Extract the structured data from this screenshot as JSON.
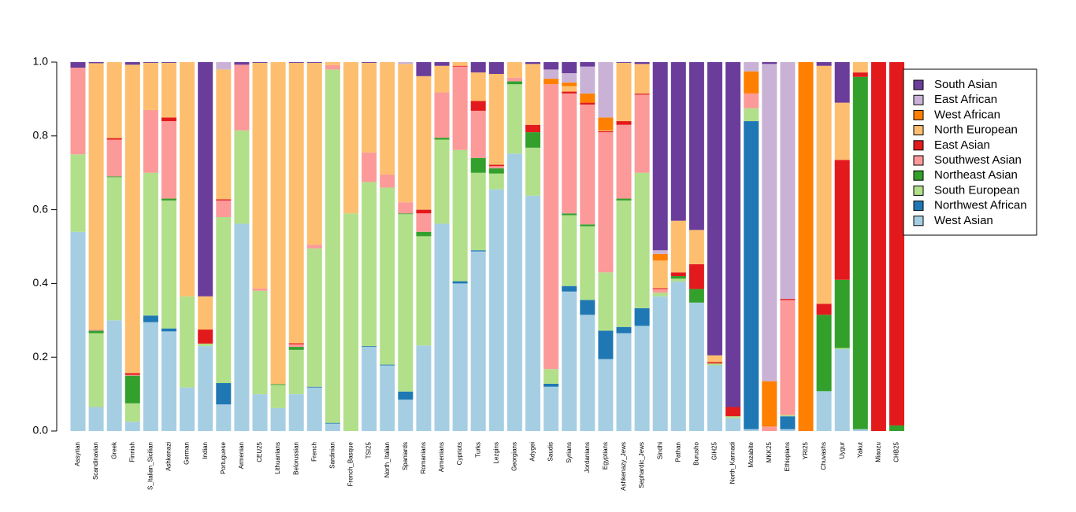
{
  "chart_data": {
    "type": "stacked_bar",
    "categories": [
      "Assyrian",
      "Scandinavian",
      "Greek",
      "Finnish",
      "S_Italian_Sicilian",
      "Ashkenazi",
      "German",
      "Indian",
      "Portuguese",
      "Armenian",
      "CEU25",
      "Lithuanians",
      "Belorussian",
      "French",
      "Sardinian",
      "French_Basque",
      "TSI25",
      "North_Italian",
      "Spaniards",
      "Romanians",
      "Armenians",
      "Cypriots",
      "Turks",
      "Lezgins",
      "Georgians",
      "Adygei",
      "Saudis",
      "Syrians",
      "Jordanians",
      "Egyptians",
      "Ashkenazy_Jews",
      "Sephardic_Jews",
      "Sindhi",
      "Pathan",
      "Burusho",
      "GIH25",
      "North_Kannadi",
      "Mozabite",
      "MKK25",
      "Ethiopians",
      "YRI25",
      "Chuvashs",
      "Uygur",
      "Yakut",
      "Miaozu",
      "CHB25"
    ],
    "series": [
      {
        "name": "West Asian",
        "color": "#a6cee3",
        "values": [
          0.54,
          0.065,
          0.3,
          0.025,
          0.295,
          0.27,
          0.118,
          0.23,
          0.072,
          0.562,
          0.1,
          0.062,
          0.1,
          0.118,
          0.02,
          0,
          0.228,
          0.178,
          0.085,
          0.232,
          0.562,
          0.4,
          0.487,
          0.655,
          0.752,
          0.638,
          0.12,
          0.378,
          0.315,
          0.195,
          0.265,
          0.285,
          0.365,
          0.405,
          0.348,
          0.178,
          0.035,
          0.005,
          0,
          0.005,
          0,
          0.108,
          0.222,
          0.005,
          0,
          0
        ]
      },
      {
        "name": "Northwest African",
        "color": "#1f78b4",
        "values": [
          0,
          0,
          0,
          0,
          0.018,
          0.008,
          0,
          0,
          0.058,
          0,
          0,
          0,
          0,
          0.002,
          0.002,
          0,
          0.002,
          0.002,
          0.022,
          0,
          0,
          0.006,
          0.003,
          0,
          0,
          0,
          0.008,
          0.015,
          0.04,
          0.077,
          0.017,
          0.048,
          0,
          0,
          0,
          0,
          0,
          0.835,
          0,
          0.035,
          0,
          0,
          0,
          0,
          0,
          0
        ]
      },
      {
        "name": "South European",
        "color": "#b2df8a",
        "values": [
          0.21,
          0.2,
          0.388,
          0.05,
          0.387,
          0.347,
          0.247,
          0.007,
          0.45,
          0.253,
          0.28,
          0.063,
          0.12,
          0.375,
          0.958,
          0.59,
          0.445,
          0.48,
          0.481,
          0.296,
          0.228,
          0.356,
          0.21,
          0.043,
          0.188,
          0.13,
          0.04,
          0.192,
          0.2,
          0.158,
          0.343,
          0.367,
          0.01,
          0.008,
          0,
          0.005,
          0.005,
          0.035,
          0,
          0.003,
          0,
          0,
          0.003,
          0,
          0,
          0
        ]
      },
      {
        "name": "Northeast Asian",
        "color": "#33a02c",
        "values": [
          0,
          0.007,
          0.002,
          0.075,
          0,
          0.005,
          0,
          0,
          0,
          0,
          0,
          0.002,
          0.008,
          0,
          0,
          0,
          0,
          0,
          0.002,
          0.012,
          0.005,
          0,
          0.04,
          0.014,
          0.008,
          0.042,
          0,
          0.005,
          0.005,
          0,
          0.005,
          0,
          0,
          0.007,
          0.037,
          0,
          0,
          0,
          0,
          0,
          0,
          0.207,
          0.185,
          0.955,
          0,
          0.015
        ]
      },
      {
        "name": "Southwest Asian",
        "color": "#fb9a99",
        "values": [
          0.235,
          0.003,
          0.1,
          0.002,
          0.17,
          0.21,
          0,
          0,
          0.045,
          0.178,
          0.006,
          0,
          0.007,
          0.01,
          0.012,
          0,
          0.08,
          0.035,
          0.03,
          0.05,
          0.123,
          0.226,
          0.128,
          0.006,
          0.01,
          0,
          0.772,
          0.325,
          0.325,
          0.38,
          0.2,
          0.212,
          0.01,
          0,
          0,
          0,
          0,
          0.04,
          0.012,
          0.312,
          0,
          0,
          0,
          0,
          0,
          0
        ]
      },
      {
        "name": "East Asian",
        "color": "#e31a1c",
        "values": [
          0,
          0,
          0.004,
          0.005,
          0,
          0.01,
          0,
          0.038,
          0.003,
          0,
          0,
          0,
          0.003,
          0,
          0,
          0,
          0,
          0,
          0,
          0.01,
          0,
          0.002,
          0.027,
          0.004,
          0,
          0.02,
          0,
          0.005,
          0.005,
          0.003,
          0.01,
          0.003,
          0.002,
          0.01,
          0.067,
          0.004,
          0.025,
          0,
          0,
          0.003,
          0,
          0.03,
          0.325,
          0.012,
          1,
          0.985
        ]
      },
      {
        "name": "North European",
        "color": "#fdbf6f",
        "values": [
          0,
          0.722,
          0.206,
          0.836,
          0.128,
          0.148,
          0.635,
          0.09,
          0.352,
          0,
          0.612,
          0.873,
          0.76,
          0.493,
          0.008,
          0.41,
          0.243,
          0.305,
          0.375,
          0.362,
          0.072,
          0.01,
          0.077,
          0.246,
          0.042,
          0.165,
          0,
          0.015,
          0,
          0.002,
          0.158,
          0.08,
          0.075,
          0.14,
          0.093,
          0.018,
          0,
          0,
          0,
          0,
          0,
          0.645,
          0.155,
          0.028,
          0,
          0
        ]
      },
      {
        "name": "West African",
        "color": "#ff7f00",
        "values": [
          0,
          0,
          0,
          0,
          0,
          0,
          0,
          0,
          0,
          0,
          0,
          0,
          0,
          0,
          0,
          0,
          0,
          0,
          0,
          0,
          0,
          0,
          0,
          0,
          0,
          0,
          0.015,
          0.01,
          0.025,
          0.035,
          0,
          0,
          0.018,
          0,
          0,
          0,
          0,
          0.06,
          0.123,
          0,
          1,
          0,
          0,
          0,
          0,
          0
        ]
      },
      {
        "name": "East African",
        "color": "#cab2d6",
        "values": [
          0,
          0,
          0,
          0,
          0,
          0,
          0,
          0,
          0.02,
          0,
          0,
          0,
          0,
          0,
          0,
          0,
          0,
          0,
          0.005,
          0,
          0,
          0,
          0,
          0,
          0,
          0,
          0.025,
          0.025,
          0.073,
          0.15,
          0,
          0,
          0.01,
          0,
          0,
          0,
          0,
          0.025,
          0.86,
          0.642,
          0,
          0,
          0,
          0,
          0,
          0
        ]
      },
      {
        "name": "South Asian",
        "color": "#6a3d9a",
        "values": [
          0.015,
          0.003,
          0,
          0.007,
          0.002,
          0.002,
          0,
          0.635,
          0,
          0.007,
          0.002,
          0,
          0.002,
          0.002,
          0,
          0,
          0.002,
          0,
          0,
          0.038,
          0.01,
          0,
          0.028,
          0.032,
          0,
          0.005,
          0.02,
          0.03,
          0.012,
          0,
          0.002,
          0.005,
          0.51,
          0.43,
          0.455,
          0.795,
          0.935,
          0,
          0.005,
          0,
          0,
          0.01,
          0.11,
          0,
          0,
          0
        ]
      }
    ],
    "ylim": [
      0,
      1
    ],
    "yticks": [
      {
        "value": 0,
        "label": "0.0"
      },
      0.2,
      0.4,
      0.6,
      0.8,
      {
        "value": 1,
        "label": "1.0"
      }
    ],
    "legend": "right"
  }
}
